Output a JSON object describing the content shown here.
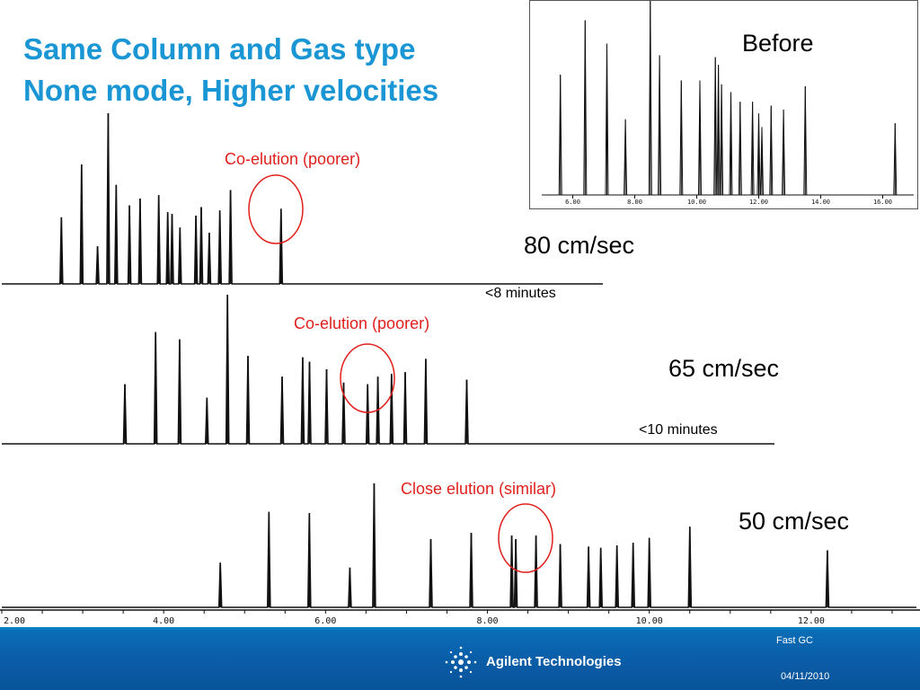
{
  "title": {
    "line1": "Same Column and Gas type",
    "line2": "None mode, Higher velocities"
  },
  "before": {
    "label": "Before",
    "x_ticks": [
      "6.00",
      "8.00",
      "10.00",
      "12.00",
      "14.00",
      "16.00"
    ]
  },
  "traces": [
    {
      "speed": "80 cm/sec",
      "note": "<8 minutes",
      "annotation": "Co-elution (poorer)"
    },
    {
      "speed": "65 cm/sec",
      "note": "<10 minutes",
      "annotation": "Co-elution (poorer)"
    },
    {
      "speed": "50 cm/sec",
      "note": "",
      "annotation": "Close elution (similar)"
    }
  ],
  "bottom_axis": {
    "ticks": [
      "2.00",
      "4.00",
      "6.00",
      "8.00",
      "10.00",
      "12.00"
    ]
  },
  "footer": {
    "brand": "Agilent Technologies",
    "section": "Fast GC",
    "date": "04/11/2010"
  },
  "colors": {
    "title": "#1a96d4",
    "annotation": "#e0201c",
    "footer": "#0a62ac"
  },
  "chart_data": [
    {
      "type": "line",
      "label": "Before",
      "x_unit": "min",
      "xlim": [
        5.0,
        17.0
      ],
      "ylim": [
        0,
        1
      ],
      "peaks": [
        {
          "x": 5.6,
          "y": 0.62
        },
        {
          "x": 6.4,
          "y": 0.9
        },
        {
          "x": 7.1,
          "y": 0.78
        },
        {
          "x": 7.7,
          "y": 0.39
        },
        {
          "x": 8.5,
          "y": 1.0
        },
        {
          "x": 8.8,
          "y": 0.72
        },
        {
          "x": 9.5,
          "y": 0.59
        },
        {
          "x": 10.1,
          "y": 0.59
        },
        {
          "x": 10.6,
          "y": 0.71
        },
        {
          "x": 10.7,
          "y": 0.67
        },
        {
          "x": 10.8,
          "y": 0.57
        },
        {
          "x": 11.1,
          "y": 0.53
        },
        {
          "x": 11.4,
          "y": 0.48
        },
        {
          "x": 11.8,
          "y": 0.48
        },
        {
          "x": 12.0,
          "y": 0.42
        },
        {
          "x": 12.1,
          "y": 0.35
        },
        {
          "x": 12.4,
          "y": 0.46
        },
        {
          "x": 12.8,
          "y": 0.44
        },
        {
          "x": 13.5,
          "y": 0.56
        },
        {
          "x": 16.4,
          "y": 0.37
        }
      ]
    },
    {
      "type": "line",
      "label": "80 cm/sec",
      "x_unit": "min",
      "xlim": [
        2.0,
        13.3
      ],
      "ylim": [
        0,
        1
      ],
      "peaks": [
        {
          "x": 3.12,
          "y": 0.39
        },
        {
          "x": 3.5,
          "y": 0.7
        },
        {
          "x": 3.8,
          "y": 0.22
        },
        {
          "x": 4.0,
          "y": 1.0
        },
        {
          "x": 4.15,
          "y": 0.58
        },
        {
          "x": 4.4,
          "y": 0.46
        },
        {
          "x": 4.6,
          "y": 0.5
        },
        {
          "x": 4.95,
          "y": 0.52
        },
        {
          "x": 5.12,
          "y": 0.42
        },
        {
          "x": 5.2,
          "y": 0.41
        },
        {
          "x": 5.35,
          "y": 0.33
        },
        {
          "x": 5.65,
          "y": 0.4
        },
        {
          "x": 5.75,
          "y": 0.45
        },
        {
          "x": 5.9,
          "y": 0.3
        },
        {
          "x": 6.1,
          "y": 0.43
        },
        {
          "x": 6.3,
          "y": 0.55
        },
        {
          "x": 7.25,
          "y": 0.44
        }
      ]
    },
    {
      "type": "line",
      "label": "65 cm/sec",
      "x_unit": "min",
      "xlim": [
        2.0,
        13.3
      ],
      "ylim": [
        0,
        1
      ],
      "peaks": [
        {
          "x": 3.8,
          "y": 0.4
        },
        {
          "x": 4.25,
          "y": 0.75
        },
        {
          "x": 4.6,
          "y": 0.7
        },
        {
          "x": 5.0,
          "y": 0.31
        },
        {
          "x": 5.3,
          "y": 1.0
        },
        {
          "x": 5.6,
          "y": 0.59
        },
        {
          "x": 6.1,
          "y": 0.45
        },
        {
          "x": 6.4,
          "y": 0.58
        },
        {
          "x": 6.5,
          "y": 0.55
        },
        {
          "x": 6.75,
          "y": 0.5
        },
        {
          "x": 7.0,
          "y": 0.41
        },
        {
          "x": 7.35,
          "y": 0.4
        },
        {
          "x": 7.5,
          "y": 0.45
        },
        {
          "x": 7.7,
          "y": 0.47
        },
        {
          "x": 7.9,
          "y": 0.48
        },
        {
          "x": 8.2,
          "y": 0.57
        },
        {
          "x": 8.8,
          "y": 0.43
        }
      ]
    },
    {
      "type": "line",
      "label": "50 cm/sec",
      "x_unit": "min",
      "xlim": [
        2.0,
        13.3
      ],
      "ylim": [
        0,
        1
      ],
      "peaks": [
        {
          "x": 4.7,
          "y": 0.36
        },
        {
          "x": 5.3,
          "y": 0.77
        },
        {
          "x": 5.8,
          "y": 0.76
        },
        {
          "x": 6.3,
          "y": 0.32
        },
        {
          "x": 6.6,
          "y": 1.0
        },
        {
          "x": 7.3,
          "y": 0.55
        },
        {
          "x": 7.8,
          "y": 0.6
        },
        {
          "x": 8.3,
          "y": 0.58
        },
        {
          "x": 8.35,
          "y": 0.55
        },
        {
          "x": 8.6,
          "y": 0.58
        },
        {
          "x": 8.9,
          "y": 0.51
        },
        {
          "x": 9.25,
          "y": 0.49
        },
        {
          "x": 9.4,
          "y": 0.48
        },
        {
          "x": 9.6,
          "y": 0.5
        },
        {
          "x": 9.8,
          "y": 0.52
        },
        {
          "x": 10.0,
          "y": 0.56
        },
        {
          "x": 10.5,
          "y": 0.65
        },
        {
          "x": 12.2,
          "y": 0.46
        }
      ]
    }
  ]
}
